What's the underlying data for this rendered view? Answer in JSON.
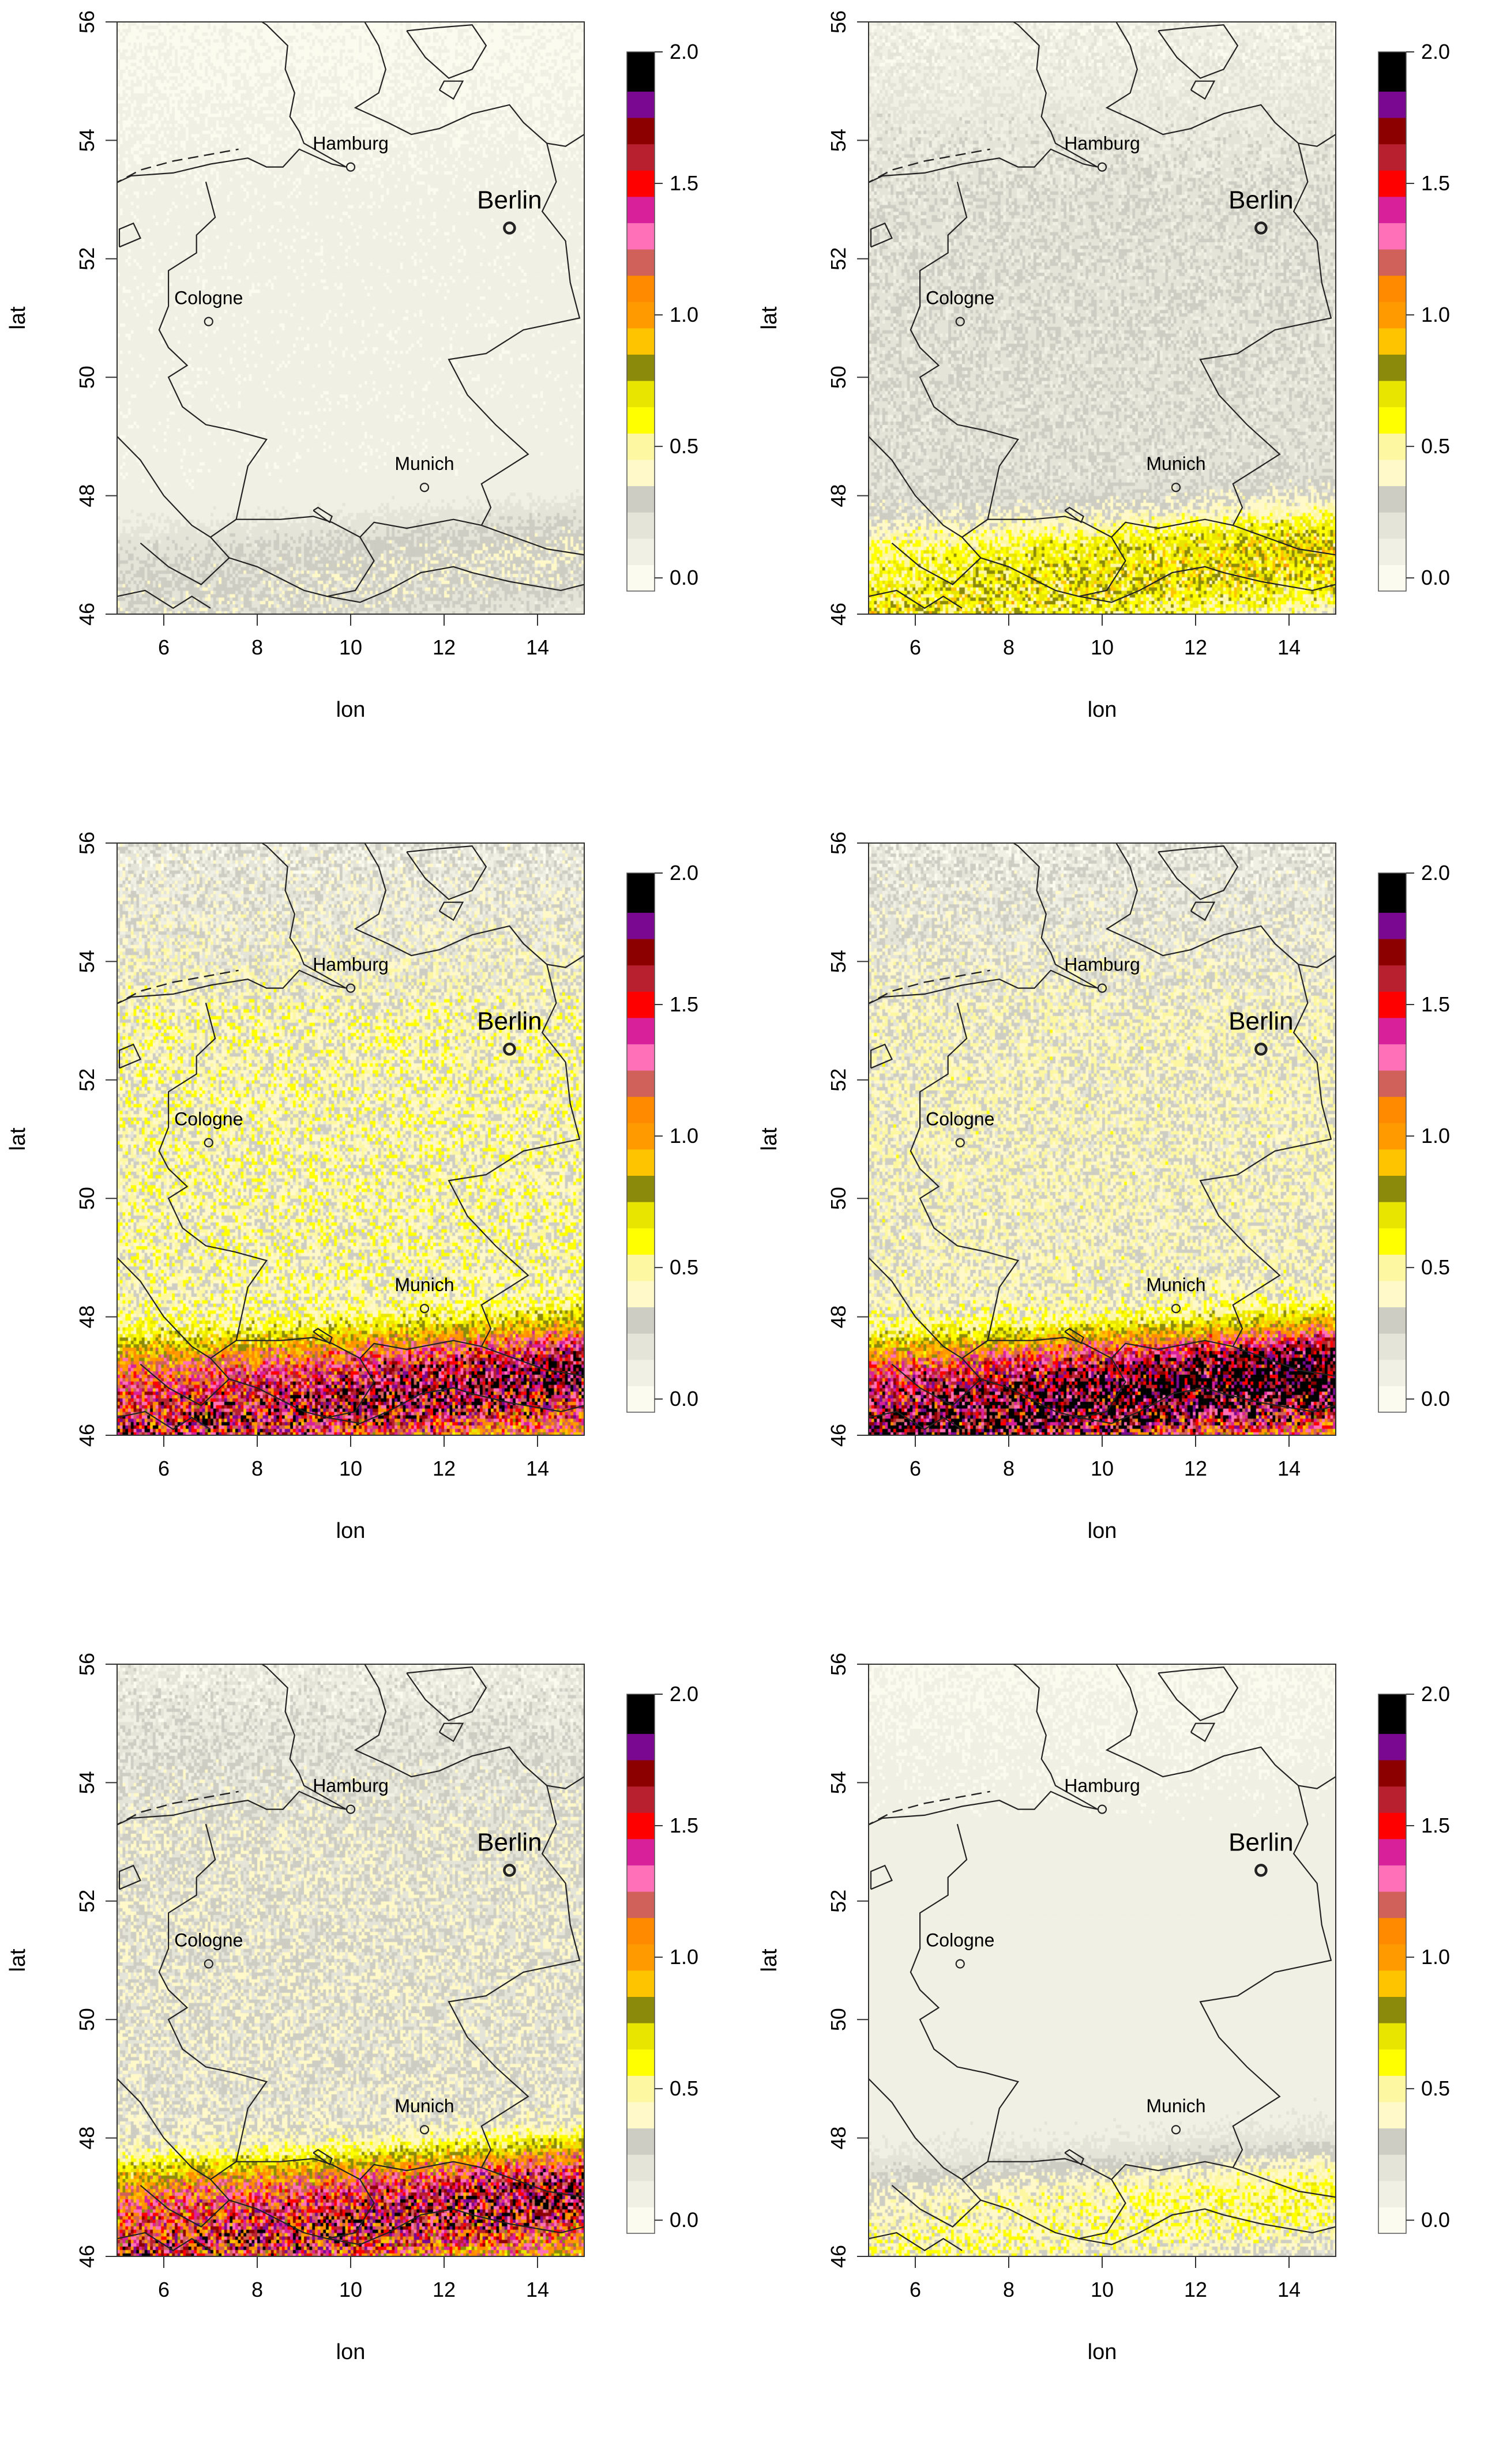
{
  "palette": [
    "#fbfbef",
    "#f0f0e4",
    "#e4e4d8",
    "#cdcdc3",
    "#fff8c8",
    "#fcf7a0",
    "#ffff00",
    "#e8e600",
    "#8c8a0a",
    "#ffc400",
    "#ff9a00",
    "#ff8a00",
    "#d0605a",
    "#ff70b8",
    "#d8209a",
    "#ff0000",
    "#b82030",
    "#8c0000",
    "#7a0890",
    "#000000"
  ],
  "legend": {
    "tick_labels": [
      "0.0",
      "0.5",
      "1.0",
      "1.5",
      "2.0"
    ],
    "tick_values": [
      0,
      0.5,
      1.0,
      1.5,
      2.0
    ],
    "breaks": [
      -0.05,
      0.05,
      0.15,
      0.25,
      0.35,
      0.45,
      0.55,
      0.65,
      0.75,
      0.85,
      0.95,
      1.05,
      1.15,
      1.25,
      1.35,
      1.45,
      1.55,
      1.65,
      1.75,
      1.85,
      2.0
    ]
  },
  "axes": {
    "xlabel": "lon",
    "ylabel": "lat",
    "xlim": [
      5,
      15
    ],
    "ylim": [
      46,
      56
    ],
    "x_ticks": [
      "6",
      "8",
      "10",
      "12",
      "14"
    ],
    "y_ticks": [
      "46",
      "48",
      "50",
      "52",
      "54",
      "56"
    ]
  },
  "cities": [
    {
      "name": "Hamburg",
      "lon": 10.0,
      "lat": 53.55,
      "capital": false
    },
    {
      "name": "Berlin",
      "lon": 13.4,
      "lat": 52.52,
      "capital": true
    },
    {
      "name": "Cologne",
      "lon": 6.96,
      "lat": 50.94,
      "capital": false
    },
    {
      "name": "Munich",
      "lon": 11.58,
      "lat": 48.14,
      "capital": false
    }
  ],
  "chart_data": [
    {
      "type": "heatmap",
      "panel": 1,
      "level": 0.08,
      "south_intensity": 0.25
    },
    {
      "type": "heatmap",
      "panel": 2,
      "level": 0.22,
      "south_intensity": 0.55
    },
    {
      "type": "heatmap",
      "panel": 3,
      "level": 0.42,
      "south_intensity": 1.35
    },
    {
      "type": "heatmap",
      "panel": 4,
      "level": 0.38,
      "south_intensity": 1.7
    },
    {
      "type": "heatmap",
      "panel": 5,
      "level": 0.3,
      "south_intensity": 1.4
    },
    {
      "type": "heatmap",
      "panel": 6,
      "level": 0.1,
      "south_intensity": 0.45
    }
  ],
  "boundaries": {
    "coast": [
      [
        [
          4.9,
          53.25
        ],
        [
          5.3,
          53.4
        ],
        [
          6.2,
          53.45
        ],
        [
          7.0,
          53.6
        ],
        [
          7.8,
          53.7
        ],
        [
          8.2,
          53.55
        ],
        [
          8.55,
          53.55
        ],
        [
          8.9,
          53.85
        ],
        [
          9.6,
          53.6
        ],
        [
          9.9,
          53.55
        ],
        [
          9.0,
          53.95
        ],
        [
          8.9,
          54.15
        ],
        [
          8.7,
          54.4
        ],
        [
          8.8,
          54.8
        ],
        [
          8.6,
          55.2
        ],
        [
          8.65,
          55.6
        ],
        [
          8.2,
          55.95
        ],
        [
          8.1,
          56.0
        ]
      ],
      [
        [
          10.3,
          56.0
        ],
        [
          10.6,
          55.6
        ],
        [
          10.75,
          55.2
        ],
        [
          10.6,
          54.8
        ],
        [
          10.1,
          54.55
        ],
        [
          10.8,
          54.3
        ],
        [
          11.3,
          54.1
        ],
        [
          11.9,
          54.2
        ],
        [
          12.6,
          54.45
        ],
        [
          13.4,
          54.6
        ],
        [
          13.7,
          54.3
        ],
        [
          14.2,
          53.95
        ],
        [
          14.6,
          53.9
        ],
        [
          15.0,
          54.1
        ]
      ],
      [
        [
          11.2,
          55.85
        ],
        [
          11.6,
          55.4
        ],
        [
          12.1,
          55.05
        ],
        [
          12.6,
          55.2
        ],
        [
          12.9,
          55.6
        ],
        [
          12.6,
          55.95
        ],
        [
          11.8,
          55.9
        ],
        [
          11.2,
          55.85
        ]
      ],
      [
        [
          11.9,
          54.85
        ],
        [
          12.2,
          54.7
        ],
        [
          12.4,
          55.0
        ],
        [
          12.0,
          55.0
        ],
        [
          11.9,
          54.85
        ]
      ]
    ],
    "borders": [
      [
        [
          6.9,
          53.3
        ],
        [
          7.1,
          52.7
        ],
        [
          6.7,
          52.4
        ],
        [
          6.7,
          52.1
        ],
        [
          6.1,
          51.8
        ],
        [
          6.1,
          51.2
        ],
        [
          5.9,
          50.8
        ],
        [
          6.1,
          50.5
        ],
        [
          6.5,
          50.2
        ],
        [
          6.1,
          50.0
        ],
        [
          6.4,
          49.5
        ],
        [
          6.9,
          49.2
        ],
        [
          7.5,
          49.1
        ],
        [
          8.2,
          48.95
        ],
        [
          7.8,
          48.5
        ],
        [
          7.55,
          47.6
        ],
        [
          8.5,
          47.6
        ],
        [
          9.2,
          47.65
        ],
        [
          9.6,
          47.55
        ],
        [
          10.2,
          47.3
        ],
        [
          10.5,
          47.55
        ],
        [
          11.2,
          47.45
        ],
        [
          12.2,
          47.6
        ],
        [
          12.8,
          47.5
        ],
        [
          13.0,
          47.8
        ],
        [
          12.8,
          48.2
        ],
        [
          13.4,
          48.5
        ],
        [
          13.8,
          48.7
        ],
        [
          13.1,
          49.2
        ],
        [
          12.5,
          49.7
        ],
        [
          12.1,
          50.3
        ],
        [
          12.9,
          50.4
        ],
        [
          13.7,
          50.8
        ],
        [
          14.3,
          50.9
        ],
        [
          14.9,
          51.0
        ],
        [
          14.7,
          51.6
        ],
        [
          14.6,
          52.3
        ],
        [
          14.1,
          52.8
        ],
        [
          14.4,
          53.3
        ],
        [
          14.2,
          53.95
        ]
      ],
      [
        [
          5.0,
          49.0
        ],
        [
          5.5,
          48.6
        ],
        [
          6.0,
          48.0
        ],
        [
          6.6,
          47.5
        ],
        [
          7.0,
          47.3
        ],
        [
          7.55,
          47.6
        ]
      ],
      [
        [
          7.0,
          47.3
        ],
        [
          7.4,
          46.95
        ],
        [
          8.0,
          46.8
        ],
        [
          8.5,
          46.6
        ],
        [
          9.0,
          46.4
        ],
        [
          9.5,
          46.3
        ],
        [
          10.1,
          46.4
        ],
        [
          10.5,
          46.9
        ],
        [
          10.2,
          47.3
        ]
      ],
      [
        [
          9.5,
          46.3
        ],
        [
          10.2,
          46.2
        ],
        [
          10.8,
          46.4
        ],
        [
          11.5,
          46.7
        ],
        [
          12.2,
          46.8
        ],
        [
          12.6,
          46.7
        ],
        [
          13.4,
          46.55
        ],
        [
          14.5,
          46.4
        ],
        [
          15.0,
          46.5
        ]
      ],
      [
        [
          12.8,
          47.5
        ],
        [
          13.5,
          47.3
        ],
        [
          14.2,
          47.1
        ],
        [
          15.0,
          47.0
        ]
      ],
      [
        [
          5.0,
          46.3
        ],
        [
          5.6,
          46.4
        ],
        [
          6.2,
          46.1
        ],
        [
          6.6,
          46.3
        ],
        [
          7.0,
          46.1
        ]
      ],
      [
        [
          5.5,
          47.2
        ],
        [
          6.1,
          46.8
        ],
        [
          6.8,
          46.5
        ],
        [
          7.4,
          46.95
        ]
      ]
    ],
    "lakes": [
      [
        [
          5.05,
          52.2
        ],
        [
          5.5,
          52.35
        ],
        [
          5.35,
          52.6
        ],
        [
          5.05,
          52.5
        ],
        [
          5.05,
          52.2
        ]
      ],
      [
        [
          9.2,
          47.75
        ],
        [
          9.55,
          47.55
        ],
        [
          9.6,
          47.65
        ],
        [
          9.3,
          47.8
        ],
        [
          9.2,
          47.75
        ]
      ]
    ],
    "dashed": [
      [
        [
          4.9,
          53.25
        ],
        [
          5.5,
          53.5
        ],
        [
          6.2,
          53.65
        ],
        [
          6.9,
          53.75
        ],
        [
          7.6,
          53.85
        ]
      ]
    ]
  }
}
